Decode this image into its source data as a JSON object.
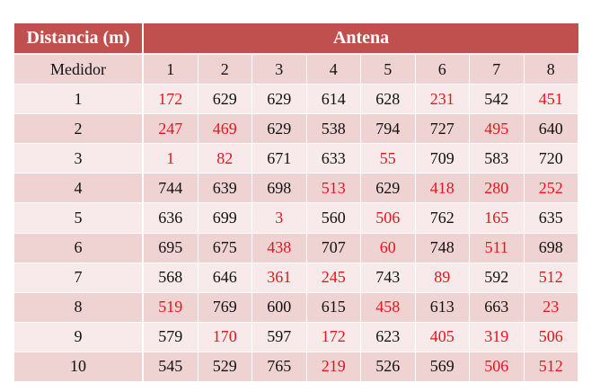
{
  "table": {
    "header_left": "Distancia (m)",
    "header_right": "Antena",
    "subheader_left": "Medidor",
    "antenna_columns": [
      "1",
      "2",
      "3",
      "4",
      "5",
      "6",
      "7",
      "8"
    ],
    "highlight_color": "#e8141c",
    "header_color": "#c0504d",
    "rows": [
      {
        "distance": "1",
        "values": [
          "172",
          "629",
          "629",
          "614",
          "628",
          "231",
          "542",
          "451"
        ],
        "red": [
          true,
          false,
          false,
          false,
          false,
          true,
          false,
          true
        ]
      },
      {
        "distance": "2",
        "values": [
          "247",
          "469",
          "629",
          "538",
          "794",
          "727",
          "495",
          "640"
        ],
        "red": [
          true,
          true,
          false,
          false,
          false,
          false,
          true,
          false
        ]
      },
      {
        "distance": "3",
        "values": [
          "1",
          "82",
          "671",
          "633",
          "55",
          "709",
          "583",
          "720"
        ],
        "red": [
          true,
          true,
          false,
          false,
          true,
          false,
          false,
          false
        ]
      },
      {
        "distance": "4",
        "values": [
          "744",
          "639",
          "698",
          "513",
          "629",
          "418",
          "280",
          "252"
        ],
        "red": [
          false,
          false,
          false,
          true,
          false,
          true,
          true,
          true
        ]
      },
      {
        "distance": "5",
        "values": [
          "636",
          "699",
          "3",
          "560",
          "506",
          "762",
          "165",
          "635"
        ],
        "red": [
          false,
          false,
          true,
          false,
          true,
          false,
          true,
          false
        ]
      },
      {
        "distance": "6",
        "values": [
          "695",
          "675",
          "438",
          "707",
          "60",
          "748",
          "511",
          "698"
        ],
        "red": [
          false,
          false,
          true,
          false,
          true,
          false,
          true,
          false
        ]
      },
      {
        "distance": "7",
        "values": [
          "568",
          "646",
          "361",
          "245",
          "743",
          "89",
          "592",
          "512"
        ],
        "red": [
          false,
          false,
          true,
          true,
          false,
          true,
          false,
          true
        ]
      },
      {
        "distance": "8",
        "values": [
          "519",
          "769",
          "600",
          "615",
          "458",
          "613",
          "663",
          "23"
        ],
        "red": [
          true,
          false,
          false,
          false,
          true,
          false,
          false,
          true
        ]
      },
      {
        "distance": "9",
        "values": [
          "579",
          "170",
          "597",
          "172",
          "623",
          "405",
          "319",
          "506"
        ],
        "red": [
          false,
          true,
          false,
          true,
          false,
          true,
          true,
          true
        ]
      },
      {
        "distance": "10",
        "values": [
          "545",
          "529",
          "765",
          "219",
          "526",
          "569",
          "506",
          "512"
        ],
        "red": [
          false,
          false,
          false,
          true,
          false,
          false,
          true,
          true
        ]
      }
    ]
  }
}
